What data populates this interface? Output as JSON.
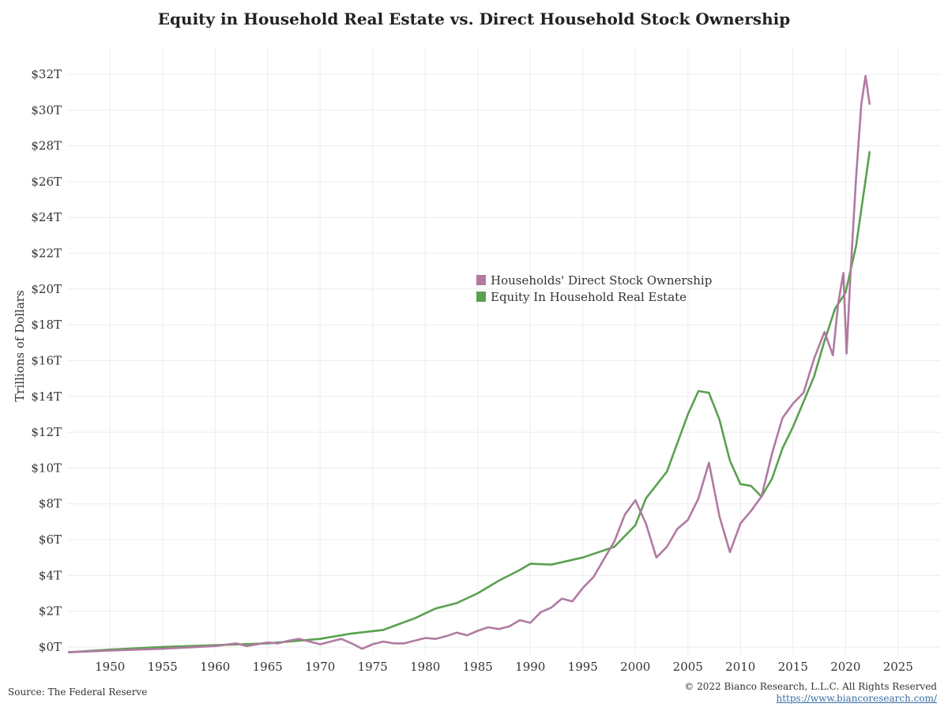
{
  "title": "Equity in Household Real Estate vs. Direct Household Stock Ownership",
  "footer": {
    "source": "Source: The Federal Reserve",
    "copyright": "© 2022 Bianco Research, L.L.C. All Rights Reserved",
    "url": "https://www.biancoresearch.com/"
  },
  "chart_data": {
    "type": "line",
    "title": "Equity in Household Real Estate vs. Direct Household Stock Ownership",
    "ylabel": "Trillions of Dollars",
    "xlabel": "",
    "xlim": [
      1946,
      2029
    ],
    "ylim": [
      -0.4,
      33.5
    ],
    "x_ticks": [
      "1950",
      "1955",
      "1960",
      "1965",
      "1970",
      "1975",
      "1980",
      "1985",
      "1990",
      "1995",
      "2000",
      "2005",
      "2010",
      "2015",
      "2020",
      "2025"
    ],
    "y_ticks": [
      "$0T",
      "$2T",
      "$4T",
      "$6T",
      "$8T",
      "$10T",
      "$12T",
      "$14T",
      "$16T",
      "$18T",
      "$20T",
      "$22T",
      "$24T",
      "$26T",
      "$28T",
      "$30T",
      "$32T"
    ],
    "y_tick_values": [
      0,
      2,
      4,
      6,
      8,
      10,
      12,
      14,
      16,
      18,
      20,
      22,
      24,
      26,
      28,
      30,
      32
    ],
    "x_tick_values": [
      1950,
      1955,
      1960,
      1965,
      1970,
      1975,
      1980,
      1985,
      1990,
      1995,
      2000,
      2005,
      2010,
      2015,
      2020,
      2025
    ],
    "grid": true,
    "legend_position": "center",
    "series": [
      {
        "name": "Households' Direct Stock Ownership",
        "color": "#b07aa1",
        "points": [
          [
            1946,
            -0.3
          ],
          [
            1950,
            -0.2
          ],
          [
            1955,
            -0.1
          ],
          [
            1960,
            0.05
          ],
          [
            1962,
            0.2
          ],
          [
            1963,
            0.05
          ],
          [
            1965,
            0.25
          ],
          [
            1966,
            0.2
          ],
          [
            1967,
            0.35
          ],
          [
            1968,
            0.45
          ],
          [
            1969,
            0.3
          ],
          [
            1970,
            0.15
          ],
          [
            1971,
            0.3
          ],
          [
            1972,
            0.45
          ],
          [
            1973,
            0.2
          ],
          [
            1974,
            -0.1
          ],
          [
            1975,
            0.15
          ],
          [
            1976,
            0.3
          ],
          [
            1977,
            0.2
          ],
          [
            1978,
            0.2
          ],
          [
            1979,
            0.35
          ],
          [
            1980,
            0.5
          ],
          [
            1981,
            0.45
          ],
          [
            1982,
            0.6
          ],
          [
            1983,
            0.8
          ],
          [
            1984,
            0.65
          ],
          [
            1985,
            0.9
          ],
          [
            1986,
            1.1
          ],
          [
            1987,
            1.0
          ],
          [
            1988,
            1.15
          ],
          [
            1989,
            1.5
          ],
          [
            1990,
            1.35
          ],
          [
            1991,
            1.95
          ],
          [
            1992,
            2.2
          ],
          [
            1993,
            2.7
          ],
          [
            1994,
            2.55
          ],
          [
            1995,
            3.3
          ],
          [
            1996,
            3.9
          ],
          [
            1997,
            4.9
          ],
          [
            1998,
            5.9
          ],
          [
            1999,
            7.4
          ],
          [
            2000,
            8.2
          ],
          [
            2001,
            6.9
          ],
          [
            2002,
            5.0
          ],
          [
            2003,
            5.6
          ],
          [
            2004,
            6.6
          ],
          [
            2005,
            7.1
          ],
          [
            2006,
            8.3
          ],
          [
            2007,
            10.3
          ],
          [
            2008,
            7.3
          ],
          [
            2009,
            5.3
          ],
          [
            2010,
            6.9
          ],
          [
            2011,
            7.6
          ],
          [
            2012,
            8.4
          ],
          [
            2013,
            10.8
          ],
          [
            2014,
            12.8
          ],
          [
            2015,
            13.6
          ],
          [
            2016,
            14.2
          ],
          [
            2017,
            16.1
          ],
          [
            2018,
            17.6
          ],
          [
            2018.8,
            16.3
          ],
          [
            2019.3,
            19.2
          ],
          [
            2019.8,
            20.9
          ],
          [
            2020.1,
            16.4
          ],
          [
            2020.5,
            21.1
          ],
          [
            2021,
            26.2
          ],
          [
            2021.5,
            30.3
          ],
          [
            2021.9,
            31.9
          ],
          [
            2022.3,
            30.3
          ]
        ]
      },
      {
        "name": "Equity In Household Real Estate",
        "color": "#59a14f",
        "points": [
          [
            1946,
            -0.3
          ],
          [
            1950,
            -0.15
          ],
          [
            1955,
            0.0
          ],
          [
            1960,
            0.1
          ],
          [
            1965,
            0.2
          ],
          [
            1970,
            0.45
          ],
          [
            1973,
            0.75
          ],
          [
            1976,
            0.95
          ],
          [
            1979,
            1.6
          ],
          [
            1981,
            2.15
          ],
          [
            1983,
            2.45
          ],
          [
            1985,
            3.0
          ],
          [
            1987,
            3.7
          ],
          [
            1989,
            4.3
          ],
          [
            1990,
            4.65
          ],
          [
            1992,
            4.6
          ],
          [
            1995,
            5.0
          ],
          [
            1998,
            5.6
          ],
          [
            2000,
            6.8
          ],
          [
            2001,
            8.3
          ],
          [
            2003,
            9.8
          ],
          [
            2005,
            13.0
          ],
          [
            2006,
            14.3
          ],
          [
            2007,
            14.2
          ],
          [
            2008,
            12.7
          ],
          [
            2009,
            10.4
          ],
          [
            2010,
            9.1
          ],
          [
            2011,
            9.0
          ],
          [
            2012,
            8.4
          ],
          [
            2013,
            9.4
          ],
          [
            2014,
            11.1
          ],
          [
            2015,
            12.3
          ],
          [
            2016,
            13.7
          ],
          [
            2017,
            15.1
          ],
          [
            2018,
            17.1
          ],
          [
            2019,
            18.9
          ],
          [
            2020,
            19.8
          ],
          [
            2021,
            22.4
          ],
          [
            2022.3,
            27.7
          ]
        ]
      }
    ]
  }
}
